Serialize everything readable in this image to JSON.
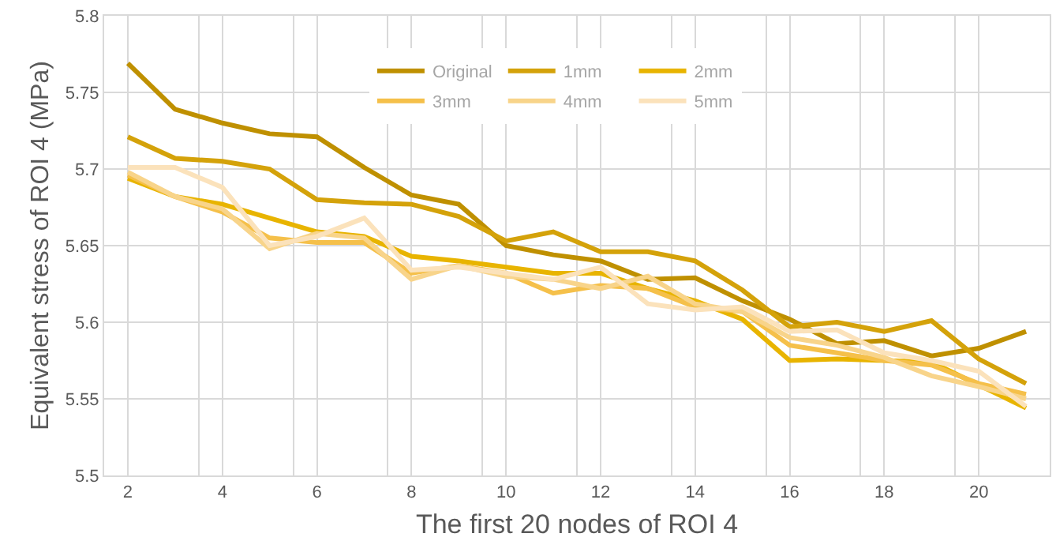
{
  "chart_data": {
    "type": "line",
    "xlabel": "The first 20 nodes of ROI 4",
    "ylabel": "Equivalent stress of ROI 4 (MPa)",
    "x": [
      2,
      3,
      4,
      5,
      6,
      7,
      8,
      9,
      10,
      11,
      12,
      13,
      14,
      15,
      16,
      17,
      18,
      19,
      20,
      21
    ],
    "xlim": [
      1.5,
      21.5
    ],
    "xticks": [
      2,
      {
        "value": 3.5,
        "label": null
      },
      4,
      {
        "value": 5.5,
        "label": null
      },
      6,
      {
        "value": 7.5,
        "label": null
      },
      8,
      {
        "value": 9.5,
        "label": null
      },
      10,
      {
        "value": 11.5,
        "label": null
      },
      12,
      {
        "value": 13.5,
        "label": null
      },
      14,
      {
        "value": 15.5,
        "label": null
      },
      16,
      {
        "value": 17.5,
        "label": null
      },
      18,
      {
        "value": 19.5,
        "label": null
      },
      20
    ],
    "ylim": [
      5.5,
      5.8
    ],
    "yticks": [
      5.5,
      5.55,
      5.6,
      5.65,
      5.7,
      5.75,
      5.8
    ],
    "grid": true,
    "legend": "top right",
    "marker": "none",
    "line_style": "solid",
    "series": [
      {
        "name": "Original",
        "color": "#bf9000",
        "values": [
          5.769,
          5.739,
          5.73,
          5.723,
          5.721,
          5.701,
          5.683,
          5.677,
          5.65,
          5.644,
          5.64,
          5.628,
          5.629,
          5.614,
          5.602,
          5.586,
          5.588,
          5.578,
          5.583,
          5.594
        ]
      },
      {
        "name": "1mm",
        "color": "#d4a20a",
        "values": [
          5.721,
          5.707,
          5.705,
          5.7,
          5.68,
          5.678,
          5.677,
          5.669,
          5.653,
          5.659,
          5.646,
          5.646,
          5.64,
          5.621,
          5.597,
          5.6,
          5.594,
          5.601,
          5.576,
          5.56
        ]
      },
      {
        "name": "2mm",
        "color": "#e8b400",
        "values": [
          5.694,
          5.682,
          5.677,
          5.668,
          5.659,
          5.656,
          5.643,
          5.64,
          5.636,
          5.632,
          5.632,
          5.622,
          5.614,
          5.602,
          5.575,
          5.576,
          5.575,
          5.574,
          5.559,
          5.544
        ]
      },
      {
        "name": "3mm",
        "color": "#f5c04a",
        "values": [
          5.696,
          5.682,
          5.672,
          5.655,
          5.652,
          5.652,
          5.632,
          5.637,
          5.632,
          5.619,
          5.624,
          5.622,
          5.61,
          5.607,
          5.585,
          5.58,
          5.575,
          5.572,
          5.56,
          5.553
        ]
      },
      {
        "name": "4mm",
        "color": "#f8d48a",
        "values": [
          5.698,
          5.682,
          5.674,
          5.648,
          5.658,
          5.655,
          5.628,
          5.637,
          5.63,
          5.628,
          5.622,
          5.63,
          5.612,
          5.607,
          5.59,
          5.585,
          5.577,
          5.565,
          5.558,
          5.55
        ]
      },
      {
        "name": "5mm",
        "color": "#fbe2bb",
        "values": [
          5.701,
          5.701,
          5.688,
          5.65,
          5.656,
          5.668,
          5.634,
          5.636,
          5.632,
          5.628,
          5.636,
          5.612,
          5.608,
          5.61,
          5.594,
          5.595,
          5.58,
          5.575,
          5.568,
          5.545
        ]
      }
    ]
  }
}
